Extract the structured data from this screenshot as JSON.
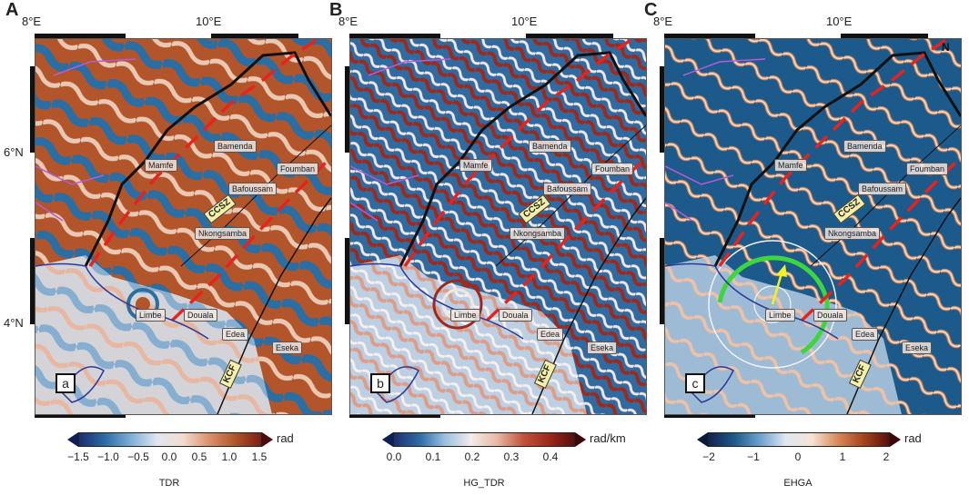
{
  "panels": [
    {
      "letter": "A",
      "sublabel": "a",
      "colorbar_title": "TDR",
      "colorbar_unit": "rad",
      "colorbar_ticks": [
        "−1.5",
        "−1.0",
        "−0.5",
        "0.0",
        "0.5",
        "1.0",
        "1.5"
      ]
    },
    {
      "letter": "B",
      "sublabel": "b",
      "colorbar_title": "HG_TDR",
      "colorbar_unit": "rad/km",
      "colorbar_ticks": [
        "0.0",
        "0.1",
        "0.2",
        "0.3",
        "0.4"
      ]
    },
    {
      "letter": "C",
      "sublabel": "c",
      "colorbar_title": "EHGA",
      "colorbar_unit": "rad",
      "colorbar_ticks": [
        "−2",
        "−1",
        "0",
        "1",
        "2"
      ]
    }
  ],
  "axis_labels": {
    "lon_8": "8°E",
    "lon_10": "10°E",
    "lat_6": "6°N",
    "lat_4": "4°N"
  },
  "cities": {
    "bamenda": "Bamenda",
    "mamfe": "Mamfe",
    "foumban": "Foumban",
    "bafoussam": "Bafoussam",
    "nkongsamba": "Nkongsamba",
    "limbe": "Limbe",
    "douala": "Douala",
    "edea": "Edea",
    "eseka": "Eseka"
  },
  "faults": {
    "ccsz": "CCSZ",
    "kcf": "KCF"
  },
  "north_marker": "N",
  "colors": {
    "warm": "#a8441c",
    "cool": "#1d5a8c",
    "lineament": "#e8221c",
    "border": "#111111",
    "arc_green": "#3ed63e",
    "arrow_yellow": "#f4f020"
  }
}
